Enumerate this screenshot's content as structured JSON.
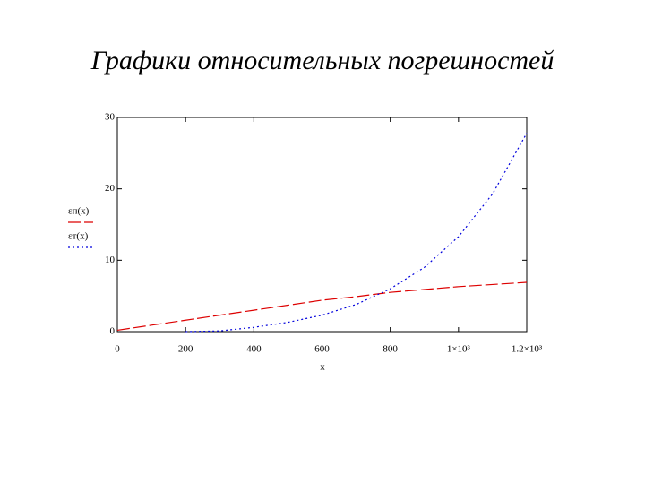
{
  "chart_data": {
    "type": "line",
    "title": "Графики относительных погрешностей",
    "x_label": "x",
    "x": [
      0,
      100,
      200,
      300,
      400,
      500,
      600,
      700,
      800,
      900,
      1000,
      1100,
      1200
    ],
    "series": [
      {
        "name": "εп(x)",
        "color": "#dd0000",
        "dash": "14 4",
        "values": [
          0.2,
          0.9,
          1.6,
          2.3,
          3.0,
          3.7,
          4.4,
          4.9,
          5.5,
          5.9,
          6.3,
          6.6,
          6.9
        ]
      },
      {
        "name": "εт(x)",
        "color": "#0000dd",
        "dash": "2 3",
        "values": [
          null,
          null,
          0,
          0.1,
          0.6,
          1.3,
          2.3,
          3.8,
          6.0,
          9.0,
          13.3,
          19.3,
          27.8
        ]
      }
    ],
    "xlim": [
      0,
      1200
    ],
    "xticks": [
      0,
      200,
      400,
      600,
      800,
      {
        "value": 1000,
        "label": "1×10³"
      },
      {
        "value": 1200,
        "label": "1.2×10³"
      }
    ],
    "ylim": [
      0,
      30
    ],
    "yticks": [
      0,
      10,
      20,
      30
    ]
  }
}
